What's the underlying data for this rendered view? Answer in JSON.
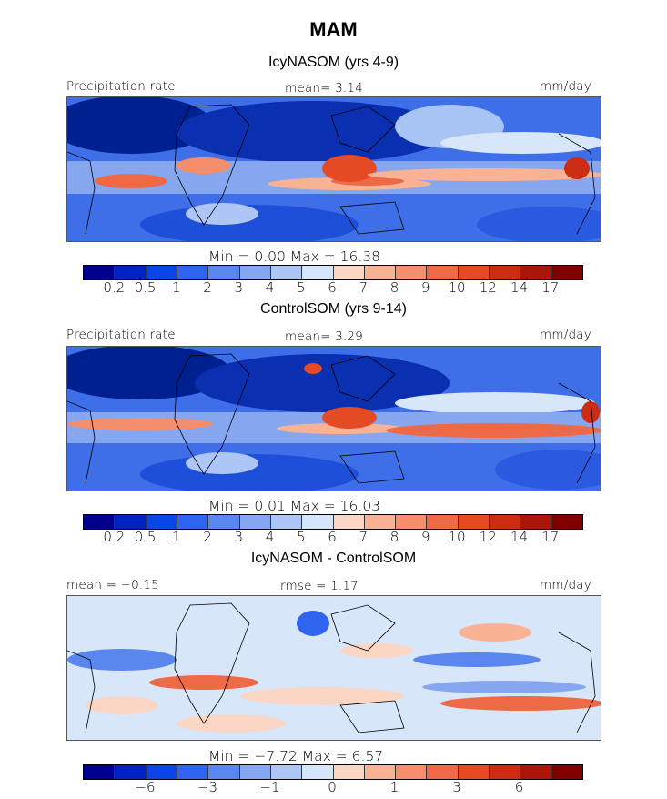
{
  "title": "MAM",
  "panels": [
    {
      "title": "IcyNASOM (yrs 4-9)",
      "left_label": "Precipitation rate",
      "center_label": "mean=    3.14",
      "right_label": "mm/day",
      "minmax": "Min =     0.00  Max =    16.38",
      "colorbar": "precip"
    },
    {
      "title": "ControlSOM (yrs 9-14)",
      "left_label": "Precipitation rate",
      "center_label": "mean=    3.29",
      "right_label": "mm/day",
      "minmax": "Min =     0.01  Max =    16.03",
      "colorbar": "precip"
    },
    {
      "title": "IcyNASOM - ControlSOM",
      "left_label": "mean =  −0.15",
      "center_label": "rmse =    1.17",
      "right_label": "mm/day",
      "minmax": "Min =   −7.72  Max =    6.57",
      "colorbar": "diff"
    }
  ],
  "colorbars": {
    "precip": {
      "colors": [
        "#00008c",
        "#0022c0",
        "#0a46e6",
        "#2e64ee",
        "#5a87ee",
        "#86a6f0",
        "#aec6f6",
        "#d6e6fa",
        "#fbd6c4",
        "#f9b294",
        "#f48e6c",
        "#ee6a46",
        "#e44a24",
        "#cc2c12",
        "#aa160a",
        "#800000"
      ],
      "ticks": [
        "0.2",
        "0.5",
        "1",
        "2",
        "3",
        "4",
        "5",
        "6",
        "7",
        "8",
        "9",
        "10",
        "12",
        "14",
        "17"
      ]
    },
    "diff": {
      "colors": [
        "#00008c",
        "#0022c0",
        "#0a46e6",
        "#2e64ee",
        "#5a87ee",
        "#86a6f0",
        "#aec6f6",
        "#d6e6fa",
        "#fbd6c4",
        "#f9b294",
        "#f48e6c",
        "#ee6a46",
        "#e44a24",
        "#cc2c12",
        "#aa160a",
        "#800000"
      ],
      "ticks": [
        "−6",
        "−3",
        "−1",
        "0",
        "1",
        "3",
        "6"
      ]
    }
  }
}
